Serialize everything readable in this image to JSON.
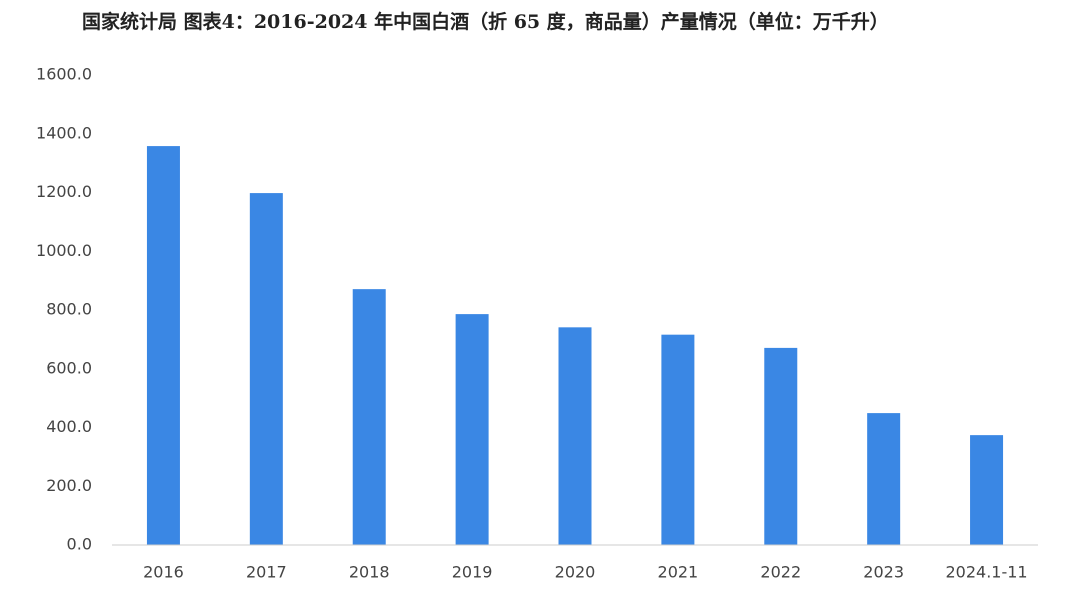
{
  "chart_data": {
    "type": "bar",
    "title": "国家统计局  图表4：2016-2024 年中国白酒（折 65 度，商品量）产量情况（单位：万千升）",
    "categories": [
      "2016",
      "2017",
      "2018",
      "2019",
      "2020",
      "2021",
      "2022",
      "2023",
      "2024.1-11"
    ],
    "values": [
      1358,
      1198,
      871,
      786,
      741,
      716,
      671,
      449,
      374
    ],
    "color": "#3a87e4",
    "ylim": [
      0,
      1600
    ],
    "yticks": [
      {
        "value": 0,
        "label": "0.0"
      },
      {
        "value": 200,
        "label": "200.0"
      },
      {
        "value": 400,
        "label": "400.0"
      },
      {
        "value": 600,
        "label": "600.0"
      },
      {
        "value": 800,
        "label": "800.0"
      },
      {
        "value": 1000,
        "label": "1000.0"
      },
      {
        "value": 1200,
        "label": "1200.0"
      },
      {
        "value": 1400,
        "label": "1400.0"
      },
      {
        "value": 1600,
        "label": "1600.0"
      }
    ],
    "grid": false
  }
}
